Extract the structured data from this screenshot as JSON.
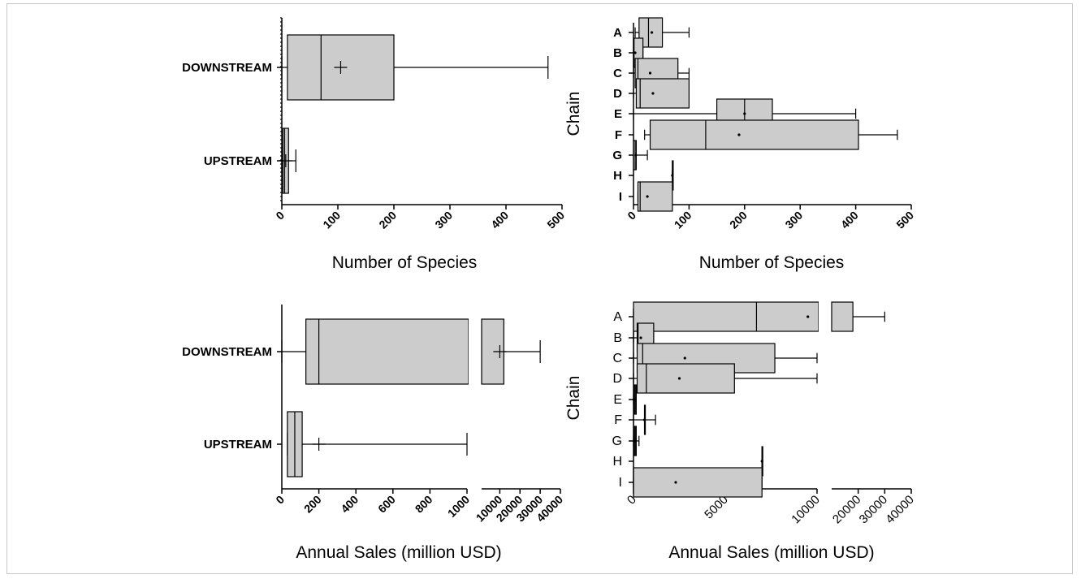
{
  "chart_data": [
    {
      "type": "box",
      "panel": "top-left",
      "xlabel": "Number of  Species",
      "ylabel": "",
      "xlim": [
        0,
        500
      ],
      "xticks": [
        "0",
        "100",
        "200",
        "300",
        "400",
        "500"
      ],
      "categories": [
        "DOWNSTREAM",
        "UPSTREAM"
      ],
      "boxes": [
        {
          "label": "DOWNSTREAM",
          "min": 0,
          "q1": 10,
          "median": 70,
          "q3": 200,
          "max": 475,
          "mean": 105
        },
        {
          "label": "UPSTREAM",
          "min": 0,
          "q1": 2,
          "median": 5,
          "q3": 12,
          "max": 25,
          "mean": 7
        }
      ]
    },
    {
      "type": "box",
      "panel": "top-right",
      "xlabel": "Number of Species",
      "ylabel": "Chain",
      "xlim": [
        0,
        500
      ],
      "xticks": [
        "0",
        "100",
        "200",
        "300",
        "400",
        "500"
      ],
      "categories": [
        "A",
        "B",
        "C",
        "D",
        "E",
        "F",
        "G",
        "H",
        "I"
      ],
      "boxes": [
        {
          "label": "A",
          "min": 3,
          "q1": 10,
          "median": 27,
          "q3": 52,
          "max": 100,
          "mean": 33
        },
        {
          "label": "B",
          "min": 0,
          "q1": 0,
          "median": 1,
          "q3": 17,
          "max": 17,
          "mean": 3
        },
        {
          "label": "C",
          "min": 0,
          "q1": 3,
          "median": 8,
          "q3": 80,
          "max": 100,
          "mean": 30
        },
        {
          "label": "D",
          "min": 0,
          "q1": 5,
          "median": 12,
          "q3": 100,
          "max": 100,
          "mean": 35
        },
        {
          "label": "E",
          "min": 0,
          "q1": 150,
          "median": 200,
          "q3": 250,
          "max": 400,
          "mean": 200
        },
        {
          "label": "F",
          "min": 20,
          "q1": 30,
          "median": 130,
          "q3": 405,
          "max": 475,
          "mean": 190
        },
        {
          "label": "G",
          "min": 0,
          "q1": 0,
          "median": 3,
          "q3": 5,
          "max": 25,
          "mean": 4
        },
        {
          "label": "H",
          "min": 70,
          "q1": 70,
          "median": 70,
          "q3": 70,
          "max": 70,
          "mean": 70
        },
        {
          "label": "I",
          "min": 8,
          "q1": 8,
          "median": 12,
          "q3": 70,
          "max": 70,
          "mean": 25
        }
      ]
    },
    {
      "type": "box",
      "panel": "bottom-left",
      "xlabel": "Annual  Sales (million USD)",
      "ylabel": "",
      "axis_break": {
        "left_range": [
          0,
          1000
        ],
        "right_range": [
          1000,
          40000
        ]
      },
      "xticks_left": [
        "0",
        "200",
        "400",
        "600",
        "800",
        "1000"
      ],
      "xticks_right": [
        "10000",
        "20000",
        "30000",
        "40000"
      ],
      "categories": [
        "DOWNSTREAM",
        "UPSTREAM"
      ],
      "boxes": [
        {
          "label": "DOWNSTREAM",
          "min": 0,
          "q1": 130,
          "median": 200,
          "q3": 12000,
          "max": 30000,
          "mean": 10000
        },
        {
          "label": "UPSTREAM",
          "min": 30,
          "q1": 30,
          "median": 70,
          "q3": 110,
          "max": 1000,
          "mean": 200
        }
      ]
    },
    {
      "type": "box",
      "panel": "bottom-right",
      "xlabel": "Annual  Sales (million USD)",
      "ylabel": "Chain",
      "axis_break": {
        "left_range": [
          0,
          10000
        ],
        "right_range": [
          10000,
          40000
        ]
      },
      "xticks_left": [
        "0",
        "5000",
        "10000"
      ],
      "xticks_right": [
        "20000",
        "30000",
        "40000"
      ],
      "categories": [
        "A",
        "B",
        "C",
        "D",
        "E",
        "F",
        "G",
        "H",
        "I"
      ],
      "boxes": [
        {
          "label": "A",
          "min": 0,
          "q1": 0,
          "median": 6700,
          "q3": 18000,
          "max": 30000,
          "mean": 9500
        },
        {
          "label": "B",
          "min": 0,
          "q1": 200,
          "median": 250,
          "q3": 1100,
          "max": 1100,
          "mean": 400
        },
        {
          "label": "C",
          "min": 0,
          "q1": 200,
          "median": 500,
          "q3": 7700,
          "max": 10000,
          "mean": 2800
        },
        {
          "label": "D",
          "min": 0,
          "q1": 200,
          "median": 700,
          "q3": 5500,
          "max": 10000,
          "mean": 2500
        },
        {
          "label": "E",
          "min": 0,
          "q1": 50,
          "median": 100,
          "q3": 150,
          "max": 150,
          "mean": 100
        },
        {
          "label": "F",
          "min": 0,
          "q1": 600,
          "median": 600,
          "q3": 600,
          "max": 1200,
          "mean": 600
        },
        {
          "label": "G",
          "min": 0,
          "q1": 50,
          "median": 100,
          "q3": 150,
          "max": 300,
          "mean": 100
        },
        {
          "label": "H",
          "min": 7000,
          "q1": 7000,
          "median": 7000,
          "q3": 7000,
          "max": 7000,
          "mean": 7000
        },
        {
          "label": "I",
          "min": 0,
          "q1": 0,
          "median": 0,
          "q3": 7000,
          "max": 7000,
          "mean": 2300
        }
      ]
    }
  ]
}
